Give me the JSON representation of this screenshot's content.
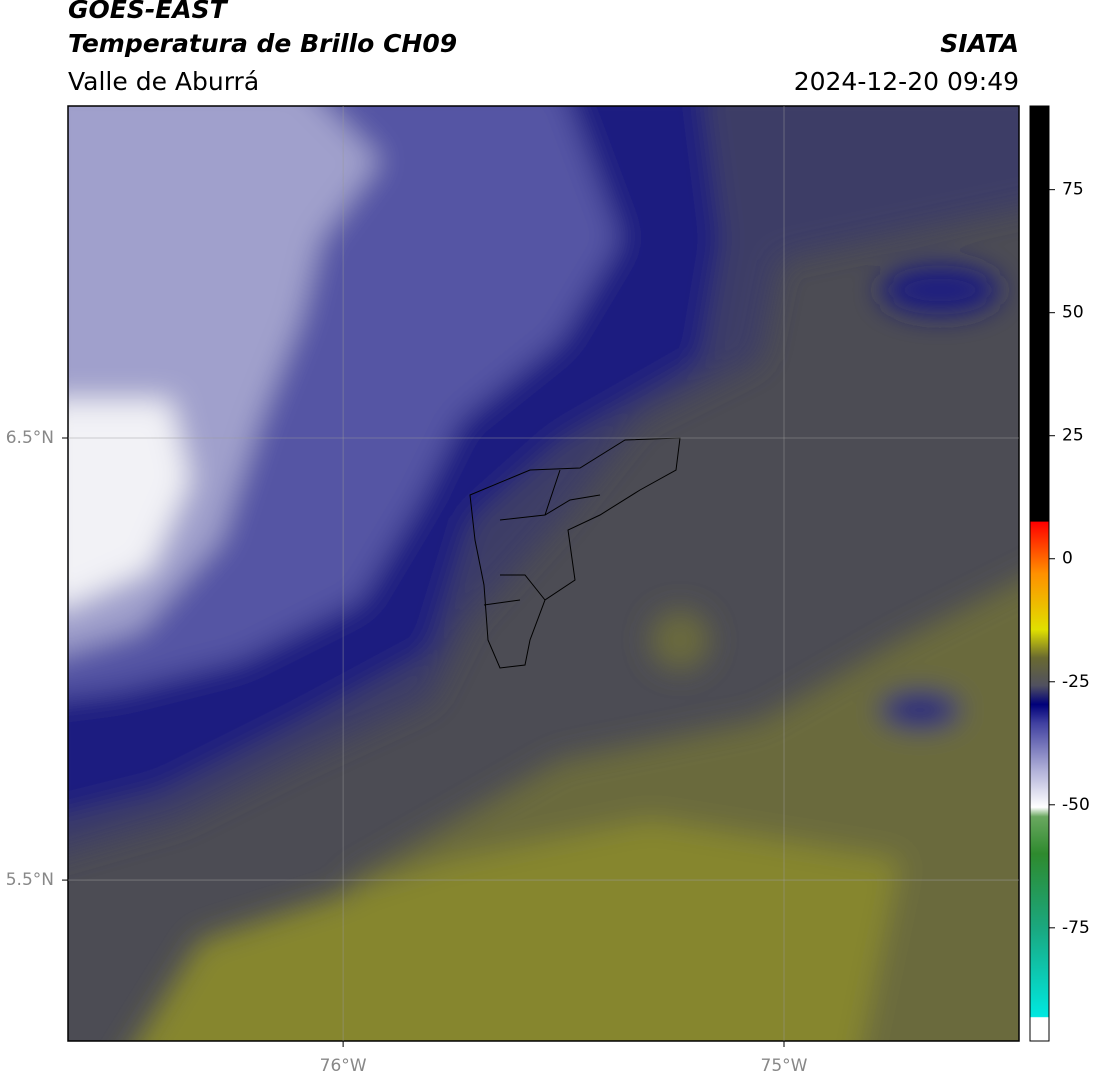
{
  "header": {
    "title": "GOES-EAST",
    "subtitle": "Temperatura de Brillo CH09",
    "region": "Valle de Aburrá",
    "source": "SIATA",
    "datetime": "2024-12-20 09:49"
  },
  "map": {
    "xlim": [
      -76.624,
      -74.467
    ],
    "ylim": [
      5.136,
      7.251
    ],
    "xticks": [
      {
        "value": -76,
        "label": "76°W"
      },
      {
        "value": -75,
        "label": "75°W"
      }
    ],
    "yticks": [
      {
        "value": 6.5,
        "label": "6.5°N"
      },
      {
        "value": 5.5,
        "label": "5.5°N"
      }
    ],
    "grid": true
  },
  "colorbar": {
    "lim": [
      -98,
      92
    ],
    "ticks": [
      75,
      50,
      25,
      0,
      -25,
      -50,
      -75
    ]
  }
}
